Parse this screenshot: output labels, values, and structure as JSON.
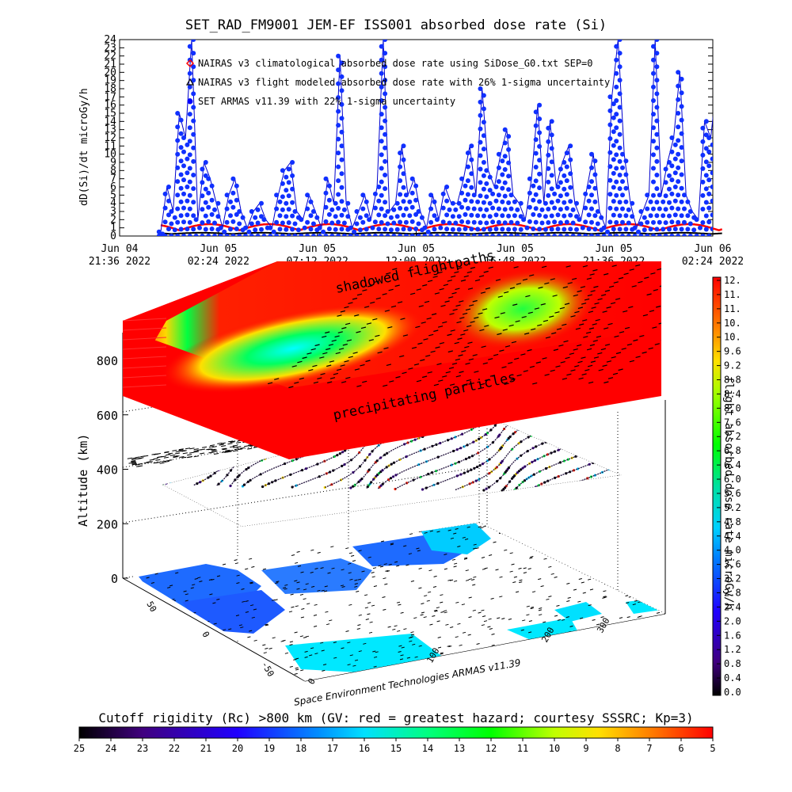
{
  "title": "SET_RAD_FM9001  JEM-EF ISS001 absorbed dose rate (Si)",
  "chart_data": [
    {
      "type": "scatter",
      "ylabel": "dD(Si)/dt microGy/h",
      "ylim": [
        0,
        24
      ],
      "yticks": [
        "0",
        "1",
        "2",
        "3",
        "4",
        "5",
        "6",
        "7",
        "8",
        "9",
        "10",
        "11",
        "12",
        "13",
        "14",
        "15",
        "16",
        "17",
        "18",
        "19",
        "20",
        "21",
        "22",
        "23",
        "24"
      ],
      "xticks": [
        {
          "date": "Jun 04",
          "time": "21:36 2022"
        },
        {
          "date": "Jun 05",
          "time": "02:24 2022"
        },
        {
          "date": "Jun 05",
          "time": "07:12 2022"
        },
        {
          "date": "Jun 05",
          "time": "12:00 2022"
        },
        {
          "date": "Jun 05",
          "time": "16:48 2022"
        },
        {
          "date": "Jun 05",
          "time": "21:36 2022"
        },
        {
          "date": "Jun 06",
          "time": "02:24 2022"
        }
      ],
      "legend": [
        {
          "label": "NAIRAS v3 climatological absorbed dose rate using SiDose_G0.txt SEP=0",
          "marker": "diamond",
          "color": "#ff0000"
        },
        {
          "label": "NAIRAS v3 flight modeled absorbed dose rate with 26% 1-sigma uncertainty",
          "marker": "triangle",
          "color": "#000000"
        },
        {
          "label": "SET ARMAS v11.39 with 22% 1-sigma uncertainty",
          "marker": "circle",
          "color": "#0000ff"
        }
      ],
      "series": [
        {
          "name": "SET ARMAS v11.39 with 22% 1-sigma uncertainty",
          "x_hours_from_first_tick": [
            2.0,
            2.3,
            2.6,
            2.9,
            3.2,
            3.5,
            3.8,
            4.1,
            4.4,
            4.7,
            5.0,
            5.3,
            5.6,
            5.9,
            6.2,
            6.5,
            6.8,
            7.1,
            7.4,
            7.7,
            8.0,
            8.3,
            8.6,
            8.9,
            9.2,
            9.5,
            9.8,
            10.1,
            10.4,
            10.7,
            11.0,
            11.3,
            11.6,
            11.9,
            12.2,
            12.5,
            12.8,
            13.1,
            13.4,
            13.7,
            14.0,
            14.3,
            14.6,
            14.9,
            15.2,
            15.5,
            15.8,
            16.1,
            16.4,
            16.7,
            17.0,
            17.3,
            17.6,
            17.9,
            18.2,
            18.5,
            18.8,
            19.1,
            19.4,
            19.7,
            20.0,
            20.3,
            20.6,
            20.9,
            21.2,
            21.5,
            21.8,
            22.1,
            22.4,
            22.7,
            23.0,
            23.3,
            23.6,
            23.9,
            24.2,
            24.5,
            24.8,
            25.1,
            25.4,
            25.7,
            26.0,
            26.3,
            26.6,
            26.9,
            27.2,
            27.5,
            27.8,
            28.1,
            28.4,
            28.7,
            29.0,
            29.3
          ],
          "values": [
            0.5,
            6.0,
            3.0,
            15.0,
            12.0,
            24.0,
            2.0,
            9.0,
            7.0,
            4.0,
            1.0,
            5.0,
            7.0,
            3.0,
            1.0,
            3.0,
            4.0,
            2.0,
            1.0,
            5.0,
            8.0,
            9.0,
            3.0,
            2.0,
            5.0,
            3.0,
            1.0,
            7.0,
            4.0,
            22.0,
            4.0,
            1.0,
            3.0,
            5.0,
            2.0,
            6.0,
            24.0,
            3.0,
            4.0,
            11.0,
            5.0,
            7.0,
            3.0,
            1.0,
            5.0,
            2.0,
            6.0,
            4.0,
            4.0,
            7.0,
            11.0,
            5.0,
            18.0,
            8.0,
            6.0,
            10.0,
            13.0,
            5.0,
            4.0,
            2.0,
            7.0,
            16.0,
            4.0,
            14.0,
            6.0,
            9.0,
            11.0,
            4.0,
            2.0,
            6.0,
            10.0,
            3.0,
            1.0,
            17.0,
            24.0,
            10.0,
            4.0,
            1.0,
            3.0,
            5.0,
            24.0,
            5.0,
            9.0,
            12.0,
            20.0,
            5.0,
            3.0,
            2.0,
            14.0,
            12.0,
            19.0,
            4.0
          ]
        }
      ]
    },
    {
      "type": "surface",
      "zlabel": "Altitude (km)",
      "zticks": [
        "0",
        "200",
        "400",
        "600",
        "800"
      ],
      "lat_ticks": [
        "50",
        "0",
        "-50"
      ],
      "lon_ticks": [
        "0",
        "100",
        "200",
        "300"
      ],
      "annotations": [
        "shadowed flightpaths",
        "precipitating particles"
      ],
      "credit": "Space Environment Technologies ARMAS v11.39",
      "colorbar": {
        "title": "flight absorbed dose rate microGy/h",
        "ticks": [
          "12.",
          "11.",
          "11.",
          "10.",
          "10.",
          "9.6",
          "9.2",
          "8.8",
          "8.4",
          "8.0",
          "7.6",
          "7.2",
          "6.8",
          "6.4",
          "6.0",
          "5.6",
          "5.2",
          "4.8",
          "4.4",
          "4.0",
          "3.6",
          "3.2",
          "2.8",
          "2.4",
          "2.0",
          "1.6",
          "1.2",
          "0.8",
          "0.4",
          "0.0"
        ]
      },
      "rigidity_bar": {
        "title": "Cutoff rigidity (Rc) >800 km (GV: red = greatest hazard; courtesy SSSRC; Kp=3)",
        "ticks": [
          "25",
          "24",
          "23",
          "22",
          "21",
          "20",
          "19",
          "18",
          "17",
          "16",
          "15",
          "14",
          "13",
          "12",
          "11",
          "10",
          "9",
          "8",
          "7",
          "6",
          "5"
        ]
      }
    }
  ]
}
